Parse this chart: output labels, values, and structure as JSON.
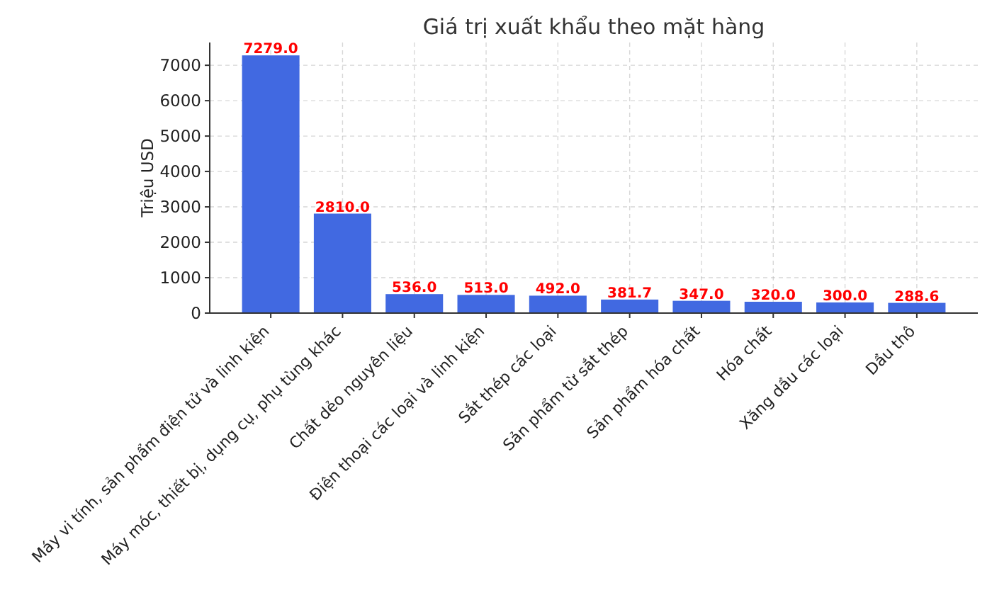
{
  "chart_data": {
    "type": "bar",
    "title": "Giá trị xuất khẩu theo mặt hàng",
    "ylabel": "Triệu USD",
    "categories": [
      "Máy vi tính, sản phẩm điện tử và linh kiện",
      "Máy móc, thiết bị, dụng cụ, phụ tùng khác",
      "Chất dẻo nguyên liệu",
      "Điện thoại các loại và linh kiện",
      "Sắt thép các loại",
      "Sản phẩm từ sắt thép",
      "Sản phẩm hóa chất",
      "Hóa chất",
      "Xăng dầu các loại",
      "Dầu thô"
    ],
    "values": [
      7279.0,
      2810.0,
      536.0,
      513.0,
      492.0,
      381.7,
      347.0,
      320.0,
      300.0,
      288.6
    ],
    "value_labels": [
      "7279.0",
      "2810.0",
      "536.0",
      "513.0",
      "492.0",
      "381.7",
      "347.0",
      "320.0",
      "300.0",
      "288.6"
    ],
    "color": "#4169e1",
    "ylim": [
      0,
      7643
    ],
    "yticks": [
      0,
      1000,
      2000,
      3000,
      4000,
      5000,
      6000,
      7000
    ],
    "grid": true
  }
}
